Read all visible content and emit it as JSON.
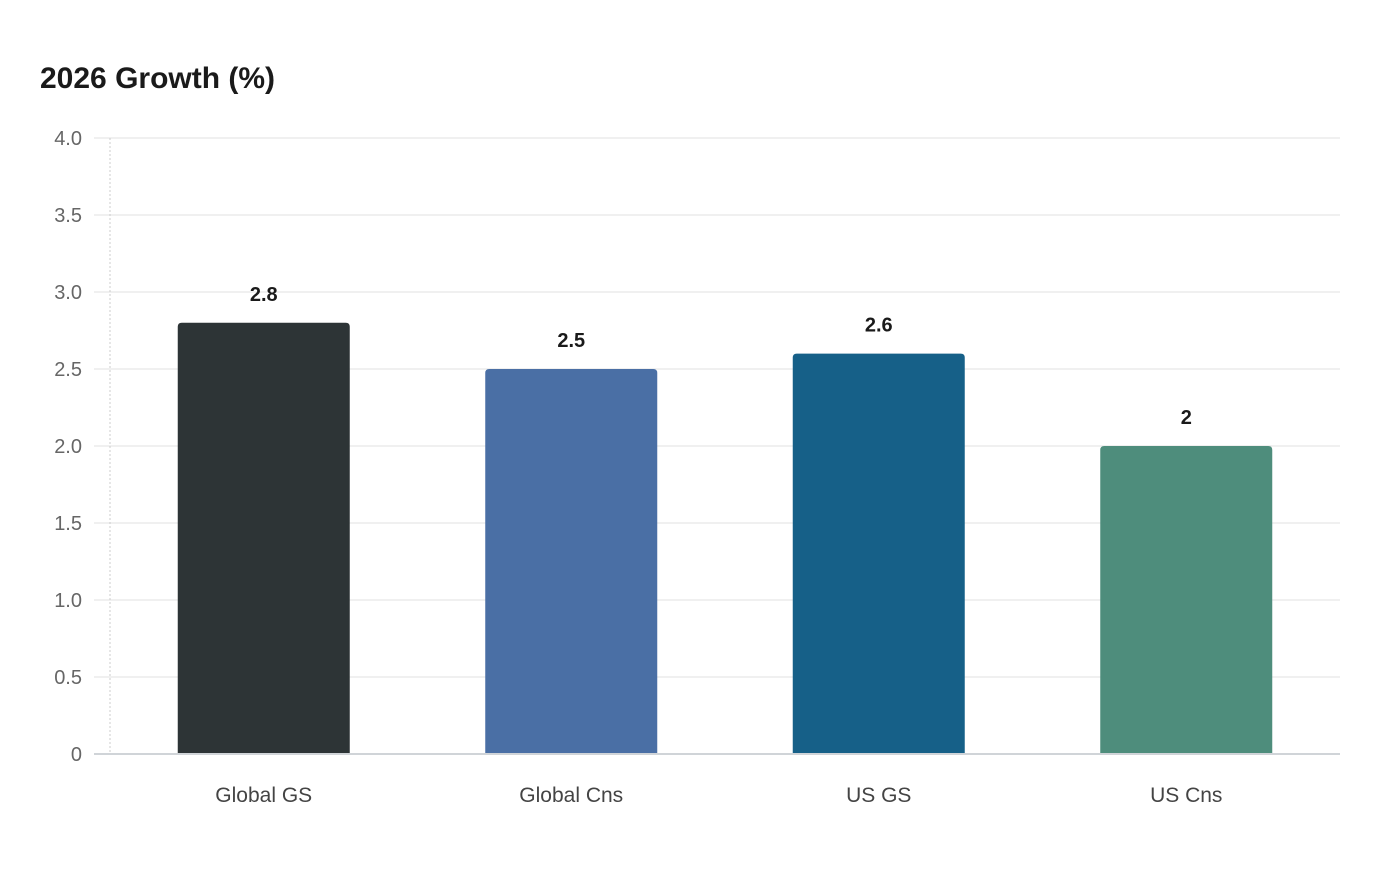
{
  "chart_data": {
    "type": "bar",
    "title": "2026 Growth (%)",
    "xlabel": "",
    "ylabel": "",
    "categories": [
      "Global GS",
      "Global Cns",
      "US GS",
      "US Cns"
    ],
    "values": [
      2.8,
      2.5,
      2.6,
      2
    ],
    "data_labels": [
      "2.8",
      "2.5",
      "2.6",
      "2"
    ],
    "colors": [
      "#2d3436",
      "#4a6fa5",
      "#166088",
      "#4e8d7c"
    ],
    "ylim": [
      0,
      4.0
    ],
    "yticks": [
      "0",
      "0.5",
      "1.0",
      "1.5",
      "2.0",
      "2.5",
      "3.0",
      "3.5",
      "4.0"
    ],
    "grid": true,
    "legend": "none"
  }
}
